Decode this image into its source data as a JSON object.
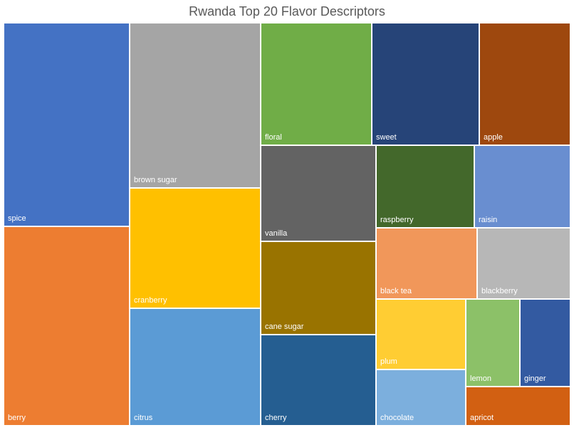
{
  "chart_data": {
    "type": "treemap",
    "title": "Rwanda Top 20 Flavor Descriptors",
    "items": [
      {
        "label": "spice",
        "color": "#4472C4"
      },
      {
        "label": "berry",
        "color": "#ED7D31"
      },
      {
        "label": "brown sugar",
        "color": "#A5A5A5"
      },
      {
        "label": "cranberry",
        "color": "#FFC000"
      },
      {
        "label": "citrus",
        "color": "#5B9BD5"
      },
      {
        "label": "floral",
        "color": "#70AD47"
      },
      {
        "label": "sweet",
        "color": "#264478"
      },
      {
        "label": "apple",
        "color": "#9E480E"
      },
      {
        "label": "vanilla",
        "color": "#636363"
      },
      {
        "label": "cane sugar",
        "color": "#997300"
      },
      {
        "label": "cherry",
        "color": "#255E91"
      },
      {
        "label": "raspberry",
        "color": "#43682B"
      },
      {
        "label": "raisin",
        "color": "#698ED0"
      },
      {
        "label": "black tea",
        "color": "#F1975A"
      },
      {
        "label": "blackberry",
        "color": "#B7B7B7"
      },
      {
        "label": "plum",
        "color": "#FFCD33"
      },
      {
        "label": "chocolate",
        "color": "#7CAFDD"
      },
      {
        "label": "lemon",
        "color": "#8CC168"
      },
      {
        "label": "ginger",
        "color": "#335AA1"
      },
      {
        "label": "apricot",
        "color": "#D26012"
      }
    ]
  }
}
